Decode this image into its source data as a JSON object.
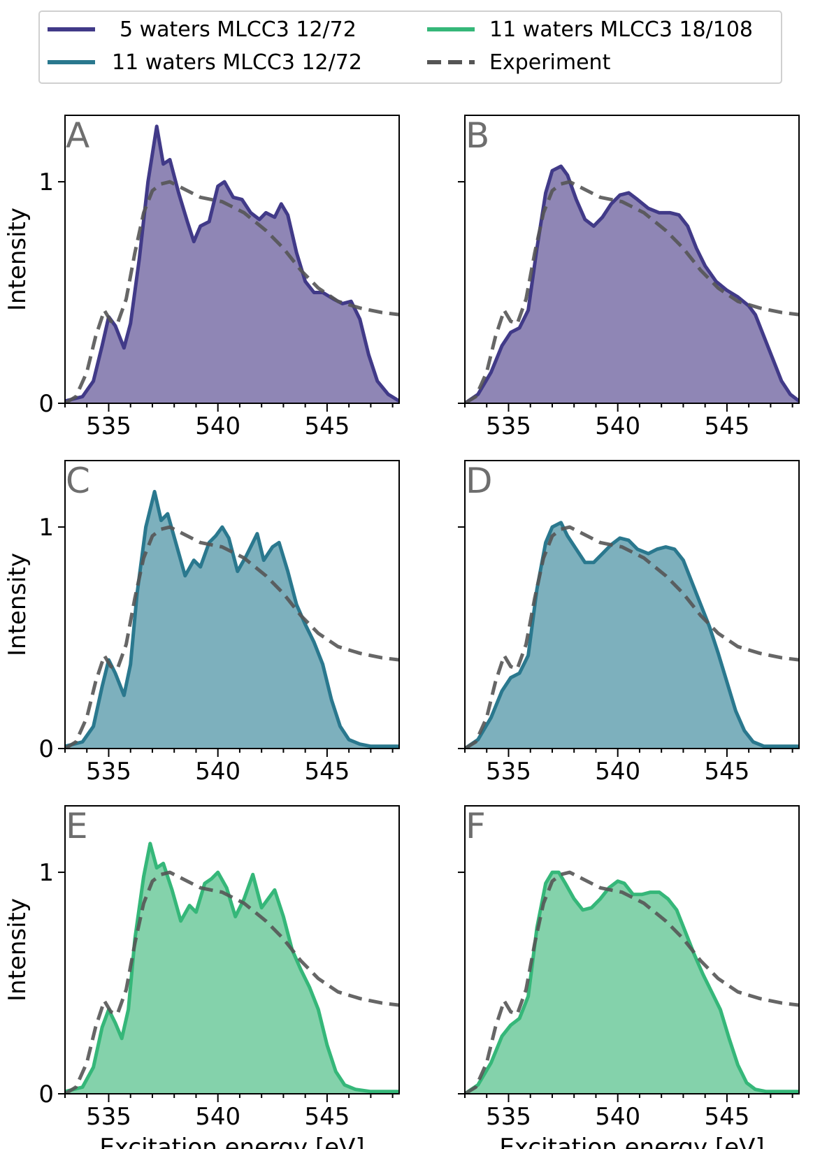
{
  "legend": {
    "placement": "top-center",
    "columns": 2,
    "entries": [
      {
        "label": " 5 waters MLCC3 12/72",
        "color": "#413a88",
        "style": "solid"
      },
      {
        "label": "11 waters MLCC3 12/72",
        "color": "#2a788e",
        "style": "solid"
      },
      {
        "label": "11 waters MLCC3 18/108",
        "color": "#35b779",
        "style": "solid"
      },
      {
        "label": "Experiment",
        "color": "#555555",
        "style": "dashed"
      }
    ]
  },
  "chart_data": [
    {
      "panel": "A",
      "type": "area",
      "title": "",
      "xlabel": "",
      "ylabel": "Intensity",
      "xlim": [
        533,
        548.3
      ],
      "ylim": [
        0,
        1.3
      ],
      "xticks": [
        535,
        540,
        545
      ],
      "yticks": [
        0,
        1
      ],
      "xtick_labels": [
        "535",
        "540",
        "545"
      ],
      "ytick_labels": [
        "0",
        "1"
      ],
      "series": [
        {
          "name": "5 waters MLCC3 12/72",
          "color": "#413a88",
          "fill": "#8f86b5",
          "x": [
            533,
            533.8,
            534.3,
            534.7,
            535.0,
            535.3,
            535.7,
            536.0,
            536.4,
            536.8,
            537.2,
            537.5,
            537.8,
            538.2,
            538.6,
            538.9,
            539.2,
            539.6,
            540.0,
            540.3,
            540.7,
            541.1,
            541.5,
            541.9,
            542.2,
            542.6,
            542.9,
            543.2,
            543.6,
            544.0,
            544.4,
            544.8,
            545.3,
            545.7,
            546.1,
            546.5,
            546.9,
            547.3,
            547.8,
            548.3
          ],
          "y": [
            0.01,
            0.03,
            0.1,
            0.26,
            0.39,
            0.35,
            0.25,
            0.36,
            0.65,
            1.0,
            1.25,
            1.08,
            1.1,
            0.95,
            0.82,
            0.73,
            0.8,
            0.82,
            0.98,
            1.0,
            0.93,
            0.92,
            0.86,
            0.83,
            0.86,
            0.84,
            0.9,
            0.85,
            0.68,
            0.55,
            0.5,
            0.5,
            0.47,
            0.45,
            0.46,
            0.38,
            0.22,
            0.1,
            0.04,
            0.01
          ]
        },
        {
          "name": "Experiment",
          "color": "#555555",
          "dashed": true,
          "x": [
            533,
            533.5,
            534,
            534.4,
            534.8,
            535.1,
            535.4,
            535.8,
            536.2,
            536.6,
            537.0,
            537.4,
            537.8,
            538.4,
            539.2,
            540.2,
            541.2,
            542.2,
            543.0,
            543.8,
            544.6,
            545.5,
            546.5,
            547.5,
            548.3
          ],
          "y": [
            0.0,
            0.03,
            0.14,
            0.3,
            0.42,
            0.37,
            0.36,
            0.47,
            0.68,
            0.86,
            0.96,
            0.99,
            1.0,
            0.97,
            0.93,
            0.91,
            0.86,
            0.78,
            0.7,
            0.6,
            0.52,
            0.46,
            0.43,
            0.41,
            0.4
          ]
        }
      ]
    },
    {
      "panel": "B",
      "type": "area",
      "title": "",
      "xlabel": "",
      "ylabel": "",
      "xlim": [
        533,
        548.3
      ],
      "ylim": [
        0,
        1.3
      ],
      "xticks": [
        535,
        540,
        545
      ],
      "yticks": [
        0,
        1
      ],
      "xtick_labels": [
        "535",
        "540",
        "545"
      ],
      "ytick_labels": [
        "",
        ""
      ],
      "series": [
        {
          "name": "5 waters MLCC3 12/72",
          "color": "#413a88",
          "fill": "#8f86b5",
          "x": [
            533,
            533.6,
            534.2,
            534.7,
            535.1,
            535.5,
            535.9,
            536.3,
            536.7,
            537.0,
            537.4,
            537.7,
            538.1,
            538.5,
            538.9,
            539.3,
            539.7,
            540.1,
            540.5,
            540.9,
            541.4,
            541.9,
            542.4,
            542.8,
            543.2,
            543.6,
            544.0,
            544.5,
            545.0,
            545.5,
            546.0,
            546.3,
            546.7,
            547.1,
            547.5,
            547.9,
            548.3
          ],
          "y": [
            0.0,
            0.04,
            0.14,
            0.26,
            0.32,
            0.34,
            0.42,
            0.7,
            0.95,
            1.05,
            1.07,
            1.03,
            0.92,
            0.83,
            0.8,
            0.84,
            0.9,
            0.94,
            0.95,
            0.92,
            0.88,
            0.86,
            0.86,
            0.85,
            0.8,
            0.7,
            0.62,
            0.55,
            0.51,
            0.48,
            0.44,
            0.4,
            0.3,
            0.2,
            0.1,
            0.04,
            0.01
          ]
        },
        {
          "name": "Experiment",
          "color": "#555555",
          "dashed": true,
          "x": [
            533,
            533.5,
            534,
            534.4,
            534.8,
            535.1,
            535.4,
            535.8,
            536.2,
            536.6,
            537.0,
            537.4,
            537.8,
            538.4,
            539.2,
            540.2,
            541.2,
            542.2,
            543.0,
            543.8,
            544.6,
            545.5,
            546.5,
            547.5,
            548.3
          ],
          "y": [
            0.0,
            0.03,
            0.14,
            0.3,
            0.42,
            0.37,
            0.36,
            0.47,
            0.68,
            0.86,
            0.96,
            0.99,
            1.0,
            0.97,
            0.93,
            0.91,
            0.86,
            0.78,
            0.7,
            0.6,
            0.52,
            0.46,
            0.43,
            0.41,
            0.4
          ]
        }
      ]
    },
    {
      "panel": "C",
      "type": "area",
      "title": "",
      "xlabel": "",
      "ylabel": "Intensity",
      "xlim": [
        533,
        548.3
      ],
      "ylim": [
        0,
        1.3
      ],
      "xticks": [
        535,
        540,
        545
      ],
      "yticks": [
        0,
        1
      ],
      "xtick_labels": [
        "535",
        "540",
        "545"
      ],
      "ytick_labels": [
        "0",
        "1"
      ],
      "series": [
        {
          "name": "11 waters MLCC3 12/72",
          "color": "#2a788e",
          "fill": "#7db0bd",
          "x": [
            533,
            533.8,
            534.3,
            534.7,
            535.0,
            535.3,
            535.7,
            536.0,
            536.3,
            536.7,
            537.1,
            537.4,
            537.7,
            538.1,
            538.5,
            538.9,
            539.2,
            539.6,
            539.9,
            540.2,
            540.5,
            540.9,
            541.3,
            541.8,
            542.1,
            542.5,
            542.8,
            543.2,
            543.6,
            544.0,
            544.4,
            544.8,
            545.2,
            545.6,
            546.0,
            546.5,
            547.0,
            547.5,
            548.3
          ],
          "y": [
            0.01,
            0.03,
            0.1,
            0.28,
            0.4,
            0.34,
            0.24,
            0.38,
            0.7,
            1.0,
            1.16,
            1.03,
            1.06,
            0.92,
            0.78,
            0.85,
            0.82,
            0.93,
            0.96,
            1.0,
            0.95,
            0.8,
            0.87,
            0.97,
            0.85,
            0.91,
            0.93,
            0.8,
            0.65,
            0.56,
            0.48,
            0.38,
            0.22,
            0.1,
            0.04,
            0.02,
            0.01,
            0.01,
            0.01
          ]
        },
        {
          "name": "Experiment",
          "color": "#555555",
          "dashed": true,
          "x": [
            533,
            533.5,
            534,
            534.4,
            534.8,
            535.1,
            535.4,
            535.8,
            536.2,
            536.6,
            537.0,
            537.4,
            537.8,
            538.4,
            539.2,
            540.2,
            541.2,
            542.2,
            543.0,
            543.8,
            544.6,
            545.5,
            546.5,
            547.5,
            548.3
          ],
          "y": [
            0.0,
            0.03,
            0.14,
            0.3,
            0.42,
            0.37,
            0.36,
            0.47,
            0.68,
            0.86,
            0.96,
            0.99,
            1.0,
            0.97,
            0.93,
            0.91,
            0.86,
            0.78,
            0.7,
            0.6,
            0.52,
            0.46,
            0.43,
            0.41,
            0.4
          ]
        }
      ]
    },
    {
      "panel": "D",
      "type": "area",
      "title": "",
      "xlabel": "",
      "ylabel": "",
      "xlim": [
        533,
        548.3
      ],
      "ylim": [
        0,
        1.3
      ],
      "xticks": [
        535,
        540,
        545
      ],
      "yticks": [
        0,
        1
      ],
      "xtick_labels": [
        "535",
        "540",
        "545"
      ],
      "ytick_labels": [
        "",
        ""
      ],
      "series": [
        {
          "name": "11 waters MLCC3 12/72",
          "color": "#2a788e",
          "fill": "#7db0bd",
          "x": [
            533,
            533.6,
            534.2,
            534.7,
            535.1,
            535.5,
            535.9,
            536.3,
            536.7,
            537.0,
            537.4,
            537.7,
            538.1,
            538.5,
            538.9,
            539.3,
            539.7,
            540.1,
            540.5,
            540.9,
            541.4,
            541.8,
            542.2,
            542.6,
            543.0,
            543.4,
            543.8,
            544.2,
            544.6,
            545.0,
            545.4,
            545.8,
            546.2,
            546.7,
            547.2,
            547.8,
            548.3
          ],
          "y": [
            0.0,
            0.04,
            0.14,
            0.26,
            0.32,
            0.34,
            0.42,
            0.72,
            0.93,
            1.0,
            1.02,
            0.96,
            0.9,
            0.84,
            0.84,
            0.88,
            0.92,
            0.95,
            0.94,
            0.9,
            0.88,
            0.9,
            0.91,
            0.9,
            0.85,
            0.75,
            0.65,
            0.55,
            0.43,
            0.3,
            0.17,
            0.08,
            0.03,
            0.01,
            0.01,
            0.01,
            0.01
          ]
        },
        {
          "name": "Experiment",
          "color": "#555555",
          "dashed": true,
          "x": [
            533,
            533.5,
            534,
            534.4,
            534.8,
            535.1,
            535.4,
            535.8,
            536.2,
            536.6,
            537.0,
            537.4,
            537.8,
            538.4,
            539.2,
            540.2,
            541.2,
            542.2,
            543.0,
            543.8,
            544.6,
            545.5,
            546.5,
            547.5,
            548.3
          ],
          "y": [
            0.0,
            0.03,
            0.14,
            0.3,
            0.42,
            0.37,
            0.36,
            0.47,
            0.68,
            0.86,
            0.96,
            0.99,
            1.0,
            0.97,
            0.93,
            0.91,
            0.86,
            0.78,
            0.7,
            0.6,
            0.52,
            0.46,
            0.43,
            0.41,
            0.4
          ]
        }
      ]
    },
    {
      "panel": "E",
      "type": "area",
      "title": "",
      "xlabel": "Excitation energy [eV]",
      "ylabel": "Intensity",
      "xlim": [
        533,
        548.3
      ],
      "ylim": [
        0,
        1.3
      ],
      "xticks": [
        535,
        540,
        545
      ],
      "yticks": [
        0,
        1
      ],
      "xtick_labels": [
        "535",
        "540",
        "545"
      ],
      "ytick_labels": [
        "0",
        "1"
      ],
      "series": [
        {
          "name": "11 waters MLCC3 18/108",
          "color": "#35b779",
          "fill": "#84d2ab",
          "x": [
            533,
            533.8,
            534.3,
            534.7,
            535.0,
            535.3,
            535.6,
            535.9,
            536.2,
            536.6,
            536.9,
            537.2,
            537.5,
            537.9,
            538.3,
            538.7,
            539.0,
            539.4,
            539.7,
            540.0,
            540.4,
            540.8,
            541.2,
            541.6,
            542.0,
            542.3,
            542.6,
            543.0,
            543.4,
            543.8,
            544.2,
            544.6,
            545.0,
            545.4,
            545.8,
            546.3,
            547.0,
            548.3
          ],
          "y": [
            0.01,
            0.03,
            0.12,
            0.3,
            0.38,
            0.32,
            0.25,
            0.38,
            0.7,
            0.98,
            1.13,
            1.02,
            1.04,
            0.92,
            0.78,
            0.85,
            0.82,
            0.95,
            0.97,
            1.0,
            0.93,
            0.8,
            0.88,
            0.99,
            0.84,
            0.88,
            0.92,
            0.8,
            0.65,
            0.56,
            0.48,
            0.38,
            0.22,
            0.1,
            0.04,
            0.02,
            0.01,
            0.01
          ]
        },
        {
          "name": "Experiment",
          "color": "#555555",
          "dashed": true,
          "x": [
            533,
            533.5,
            534,
            534.4,
            534.8,
            535.1,
            535.4,
            535.8,
            536.2,
            536.6,
            537.0,
            537.4,
            537.8,
            538.4,
            539.2,
            540.2,
            541.2,
            542.2,
            543.0,
            543.8,
            544.6,
            545.5,
            546.5,
            547.5,
            548.3
          ],
          "y": [
            0.0,
            0.03,
            0.14,
            0.3,
            0.42,
            0.37,
            0.36,
            0.47,
            0.68,
            0.86,
            0.96,
            0.99,
            1.0,
            0.97,
            0.93,
            0.91,
            0.86,
            0.78,
            0.7,
            0.6,
            0.52,
            0.46,
            0.43,
            0.41,
            0.4
          ]
        }
      ]
    },
    {
      "panel": "F",
      "type": "area",
      "title": "",
      "xlabel": "Excitation energy [eV]",
      "ylabel": "",
      "xlim": [
        533,
        548.3
      ],
      "ylim": [
        0,
        1.3
      ],
      "xticks": [
        535,
        540,
        545
      ],
      "yticks": [
        0,
        1
      ],
      "xtick_labels": [
        "535",
        "540",
        "545"
      ],
      "ytick_labels": [
        "",
        ""
      ],
      "series": [
        {
          "name": "11 waters MLCC3 18/108",
          "color": "#35b779",
          "fill": "#84d2ab",
          "x": [
            533,
            533.6,
            534.2,
            534.7,
            535.1,
            535.5,
            535.9,
            536.3,
            536.7,
            537.0,
            537.3,
            537.6,
            538.0,
            538.4,
            538.8,
            539.2,
            539.6,
            540.0,
            540.3,
            540.7,
            541.1,
            541.5,
            541.9,
            542.3,
            542.7,
            543.1,
            543.5,
            543.9,
            544.3,
            544.7,
            545.1,
            545.5,
            545.9,
            546.3,
            546.8,
            547.4,
            548.3
          ],
          "y": [
            0.0,
            0.04,
            0.14,
            0.26,
            0.31,
            0.34,
            0.44,
            0.75,
            0.95,
            1.0,
            1.0,
            0.95,
            0.88,
            0.83,
            0.84,
            0.88,
            0.93,
            0.96,
            0.95,
            0.9,
            0.9,
            0.91,
            0.91,
            0.88,
            0.83,
            0.73,
            0.63,
            0.54,
            0.46,
            0.38,
            0.25,
            0.13,
            0.05,
            0.02,
            0.01,
            0.01,
            0.01
          ]
        },
        {
          "name": "Experiment",
          "color": "#555555",
          "dashed": true,
          "x": [
            533,
            533.5,
            534,
            534.4,
            534.8,
            535.1,
            535.4,
            535.8,
            536.2,
            536.6,
            537.0,
            537.4,
            537.8,
            538.4,
            539.2,
            540.2,
            541.2,
            542.2,
            543.0,
            543.8,
            544.6,
            545.5,
            546.5,
            547.5,
            548.3
          ],
          "y": [
            0.0,
            0.03,
            0.14,
            0.3,
            0.42,
            0.37,
            0.36,
            0.47,
            0.68,
            0.86,
            0.96,
            0.99,
            1.0,
            0.97,
            0.93,
            0.91,
            0.86,
            0.78,
            0.7,
            0.6,
            0.52,
            0.46,
            0.43,
            0.41,
            0.4
          ]
        }
      ]
    }
  ]
}
